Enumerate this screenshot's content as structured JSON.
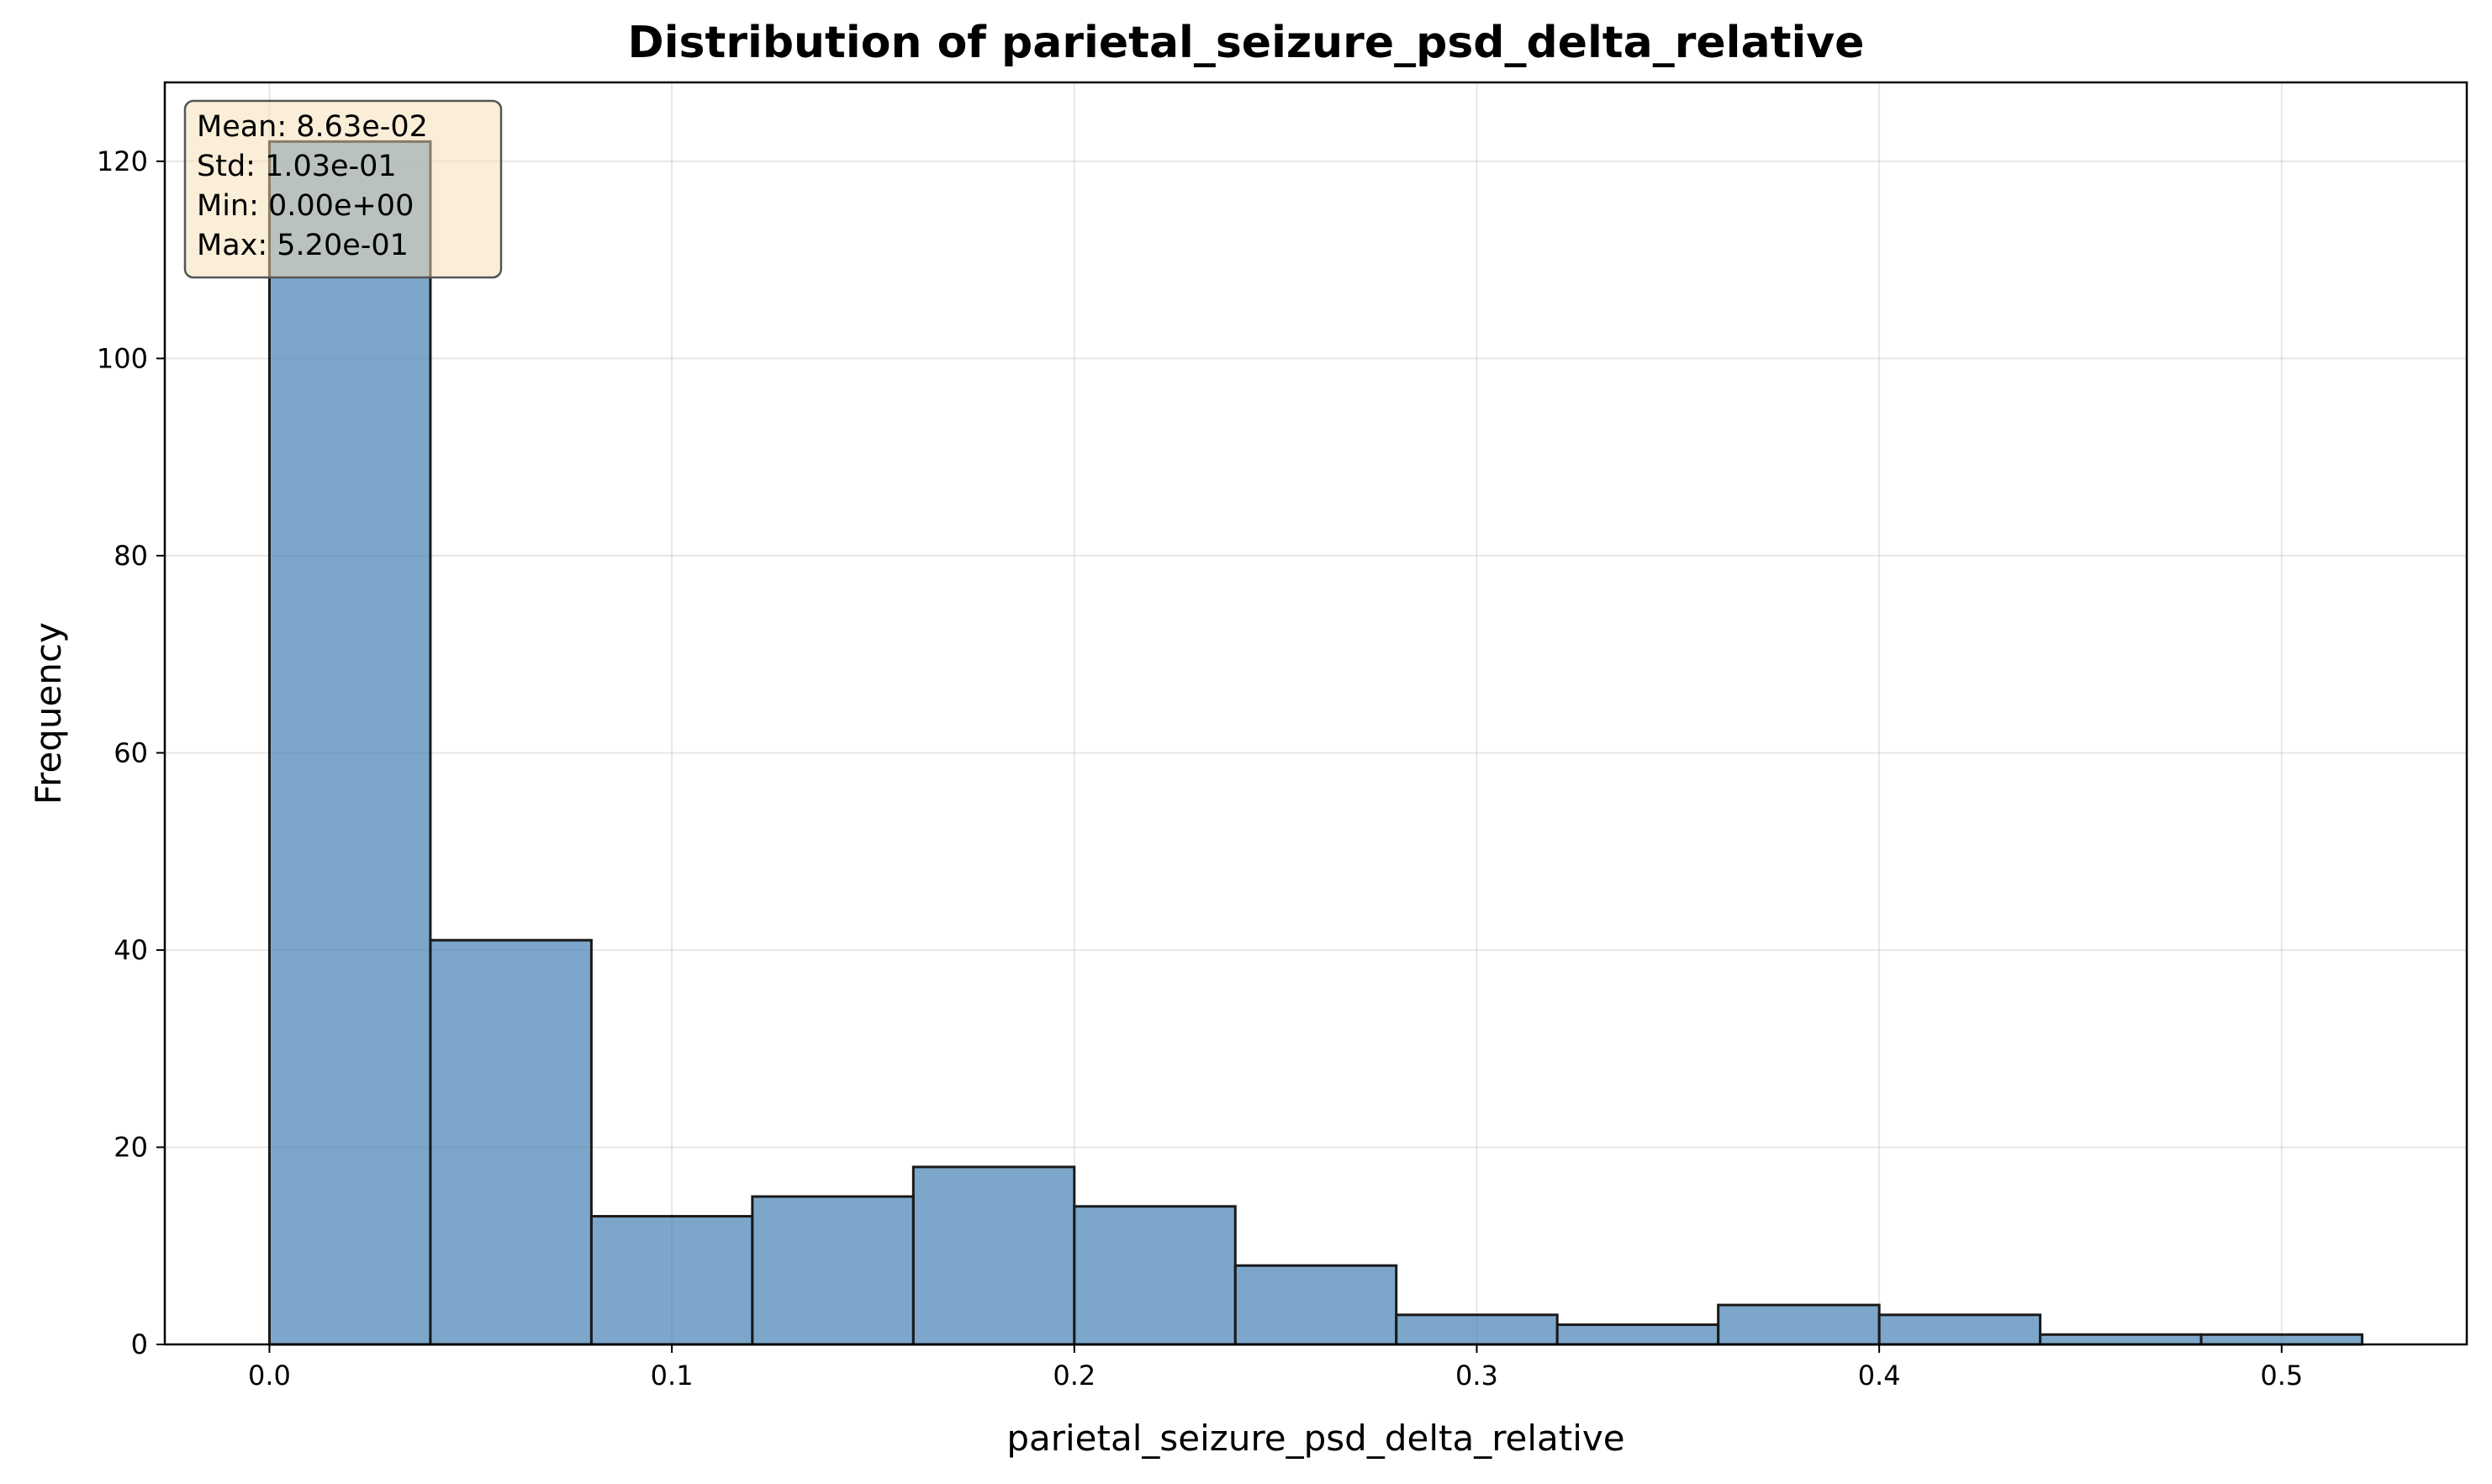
{
  "chart_data": {
    "type": "bar",
    "subtype": "histogram",
    "title": "Distribution of parietal_seizure_psd_delta_relative",
    "xlabel": "parietal_seizure_psd_delta_relative",
    "ylabel": "Frequency",
    "bin_edges": [
      0.0,
      0.04,
      0.08,
      0.12,
      0.16,
      0.2,
      0.24,
      0.28,
      0.32,
      0.36,
      0.4,
      0.44,
      0.48,
      0.52
    ],
    "counts": [
      122,
      41,
      13,
      15,
      18,
      14,
      8,
      3,
      2,
      4,
      3,
      1,
      1
    ],
    "xlim": [
      -0.026,
      0.546
    ],
    "ylim": [
      0,
      128
    ],
    "x_ticks": [
      0.0,
      0.1,
      0.2,
      0.3,
      0.4,
      0.5
    ],
    "x_tick_labels": [
      "0.0",
      "0.1",
      "0.2",
      "0.3",
      "0.4",
      "0.5"
    ],
    "y_ticks": [
      0,
      20,
      40,
      60,
      80,
      100,
      120
    ],
    "y_tick_labels": [
      "0",
      "20",
      "40",
      "60",
      "80",
      "100",
      "120"
    ],
    "grid": true,
    "bar_color": "#4682b4",
    "bar_edge_color": "#1a1a1a",
    "stats_box": {
      "placement": "top-left",
      "background": "#f5deb3",
      "lines": [
        "Mean: 8.63e-02",
        "Std: 1.03e-01",
        "Min: 0.00e+00",
        "Max: 5.20e-01"
      ]
    }
  }
}
